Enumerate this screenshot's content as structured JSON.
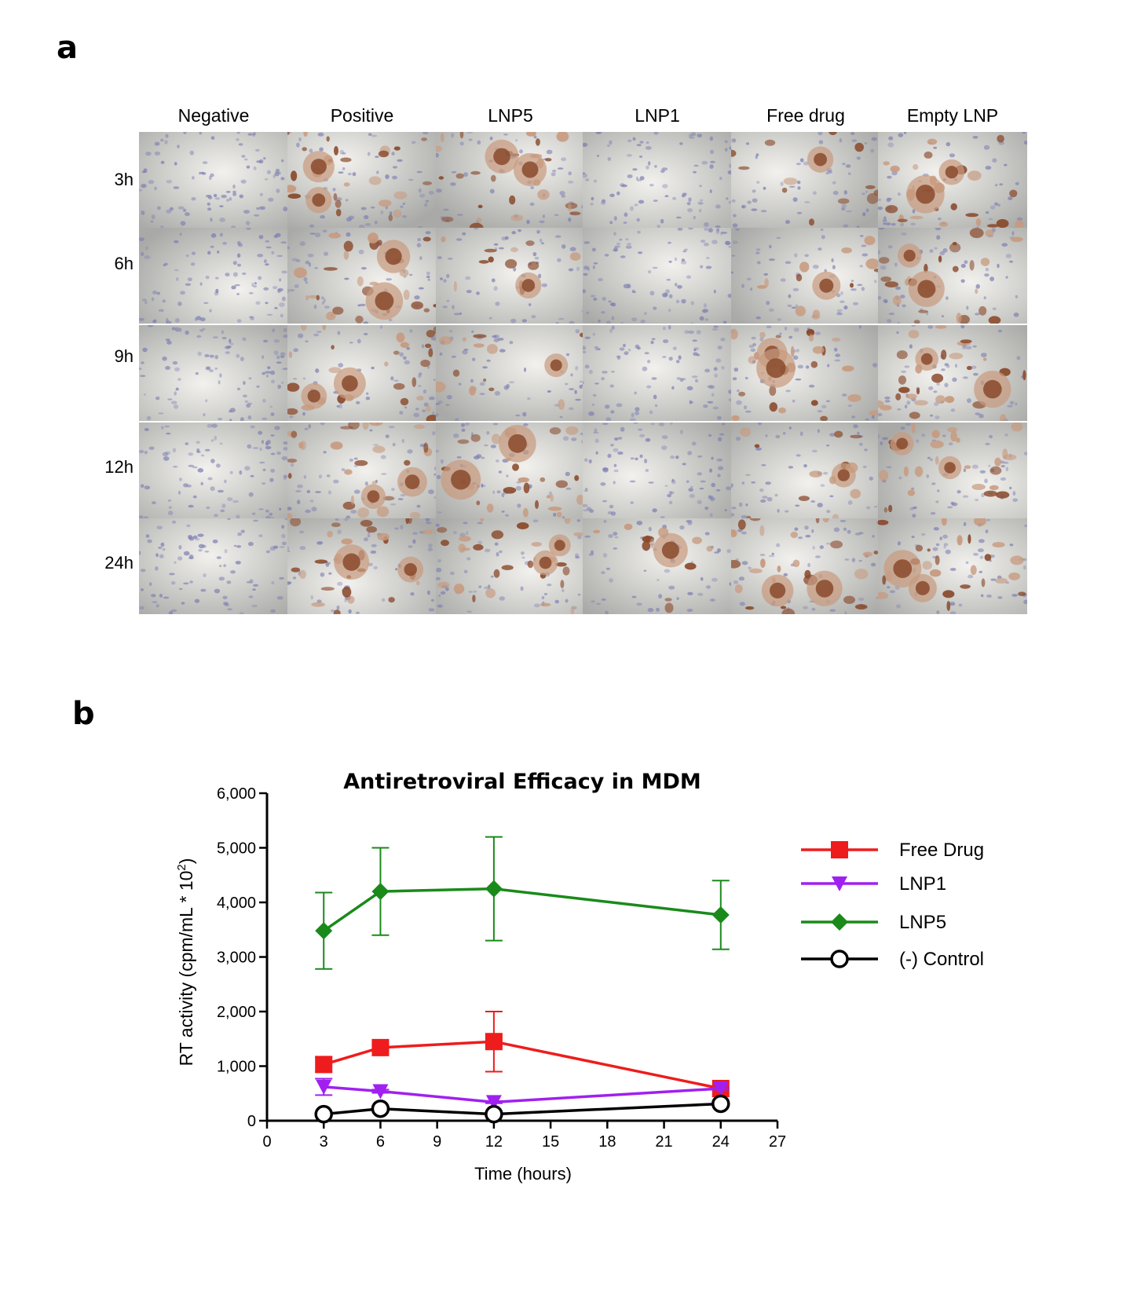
{
  "panel_labels": {
    "a": "a",
    "b": "b"
  },
  "micrographs": {
    "columns": [
      "Negative",
      "Positive",
      "LNP5",
      "LNP1",
      "Free drug",
      "Empty LNP"
    ],
    "rows": [
      "3h",
      "6h",
      "9h",
      "12h",
      "24h"
    ],
    "staining": [
      [
        "sparse",
        "heavy",
        "heavy",
        "sparse",
        "medium",
        "heavy"
      ],
      [
        "sparse",
        "heavy",
        "medium",
        "sparse",
        "medium",
        "heavy"
      ],
      [
        "sparse",
        "heavy",
        "medium",
        "sparse",
        "heavy",
        "heavy"
      ],
      [
        "sparse",
        "heavy",
        "heavy",
        "sparse",
        "medium",
        "heavy"
      ],
      [
        "sparse",
        "heavy",
        "heavy",
        "medium",
        "heavy",
        "heavy"
      ]
    ],
    "colors": {
      "background": "#dcdcd8",
      "cell": "#7d7fb2",
      "stain": "#8a4a2c",
      "stain_light": "#c79a7e"
    }
  },
  "chart_data": {
    "type": "line",
    "title": "Antiretroviral Efficacy in MDM",
    "xlabel": "Time (hours)",
    "ylabel": "RT activity (cpm/mL * 10",
    "ylabel_superscript": "2",
    "ylabel_close": ")",
    "xlim": [
      0,
      27
    ],
    "ylim": [
      0,
      6000
    ],
    "xticks": [
      0,
      3,
      6,
      9,
      12,
      15,
      18,
      21,
      24,
      27
    ],
    "yticks": [
      0,
      1000,
      2000,
      3000,
      4000,
      5000,
      6000
    ],
    "ytick_labels": [
      "0",
      "1,000",
      "2,000",
      "3,000",
      "4,000",
      "5,000",
      "6,000"
    ],
    "legend_position": "right",
    "series": [
      {
        "name": "Free Drug",
        "marker": "square",
        "color": "#ee1c1c",
        "x": [
          3,
          6,
          12,
          24
        ],
        "y": [
          1030,
          1340,
          1450,
          590
        ],
        "err": [
          130,
          50,
          550,
          20
        ]
      },
      {
        "name": "LNP1",
        "marker": "triangle-down",
        "color": "#a020f0",
        "x": [
          3,
          6,
          12,
          24
        ],
        "y": [
          620,
          540,
          340,
          590
        ],
        "err": [
          150,
          30,
          20,
          20
        ]
      },
      {
        "name": "LNP5",
        "marker": "diamond",
        "color": "#1a8a1a",
        "x": [
          3,
          6,
          12,
          24
        ],
        "y": [
          3480,
          4200,
          4250,
          3770
        ],
        "err": [
          700,
          800,
          950,
          630
        ]
      },
      {
        "name": "(-) Control",
        "marker": "circle-open",
        "color": "#000000",
        "x": [
          3,
          6,
          12,
          24
        ],
        "y": [
          120,
          220,
          120,
          310
        ],
        "err": [
          0,
          0,
          0,
          0
        ]
      }
    ]
  }
}
